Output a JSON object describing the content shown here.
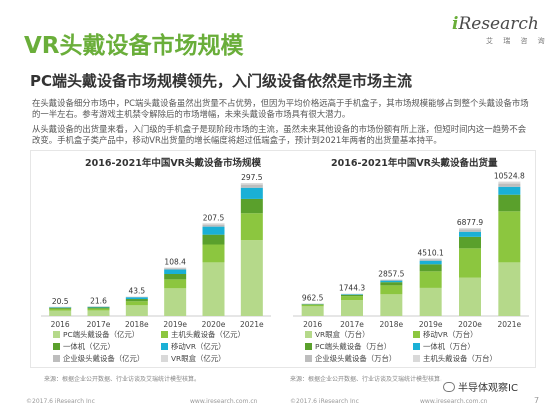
{
  "slide": {
    "title": "VR头戴设备市场规模",
    "subtitle": "PC端头戴设备市场规模领先，入门级设备依然是市场主流",
    "paragraph1": "在头戴设备细分市场中，PC端头戴设备虽然出货量不占优势，但因为平均价格远高于手机盒子，其市场规模能够占到整个头戴设备市场的一半左右。参考游戏主机禁令解除后的市场增幅，未来头戴设备市场具有很大潜力。",
    "paragraph2": "从头戴设备的出货量来看，入门级的手机盒子是现阶段市场的主流，虽然未来其他设备的市场份额有所上涨，但短时间内这一趋势不会改变。手机盒子类产品中，移动VR出货量的增长幅度将超过低端盒子，预计到2021年两者的出货量基本持平。"
  },
  "logo": {
    "brand_i": "i",
    "brand_rest": "Research",
    "sub": "艾 瑞 咨 询"
  },
  "colors": {
    "green_dark": "#5aa02c",
    "green_mid": "#8cc63f",
    "green_light": "#b5d98a",
    "cyan": "#1ab0d6",
    "gray": "#bdbdbd",
    "title_green": "#6aae3a"
  },
  "chart_data": [
    {
      "type": "bar",
      "stacked": true,
      "title": "2016-2021年中国VR头戴设备市场规模",
      "categories": [
        "2016",
        "2017e",
        "2018e",
        "2019e",
        "2020e",
        "2021e"
      ],
      "totals": [
        20.5,
        21.6,
        43.5,
        108.4,
        207.5,
        297.5
      ],
      "total_labels": [
        "20.5",
        "21.6",
        "43.5",
        "108.4",
        "207.5",
        "297.5"
      ],
      "series": [
        {
          "name": "PC端头戴设备（亿元）",
          "color": "#b5d98a",
          "values": [
            12,
            12.5,
            24,
            62,
            120,
            170
          ]
        },
        {
          "name": "主机头戴设备（亿元）",
          "color": "#8cc63f",
          "values": [
            4,
            4,
            9,
            20,
            40,
            60
          ]
        },
        {
          "name": "一体机（亿元）",
          "color": "#5aa02c",
          "values": [
            2.5,
            2.6,
            5,
            12,
            22,
            32
          ]
        },
        {
          "name": "移动VR（亿元）",
          "color": "#1ab0d6",
          "values": [
            1.5,
            1.7,
            4,
            10,
            18,
            25
          ]
        },
        {
          "name": "企业级头戴设备（亿元）",
          "color": "#bdbdbd",
          "values": [
            0.3,
            0.4,
            0.8,
            2.4,
            4.5,
            7
          ]
        },
        {
          "name": "VR眼盒（亿元）",
          "color": "#d9d9d9",
          "values": [
            0.2,
            0.4,
            0.7,
            2,
            3,
            3.5
          ]
        }
      ],
      "ylim": [
        0,
        320
      ],
      "legend_position": "bottom"
    },
    {
      "type": "bar",
      "stacked": true,
      "title": "2016-2021年中国VR头戴设备出货量",
      "categories": [
        "2016",
        "2017e",
        "2018e",
        "2019e",
        "2020e",
        "2021e"
      ],
      "totals": [
        962.5,
        1744.3,
        2857.5,
        4510.1,
        6877.9,
        10524.8
      ],
      "total_labels": [
        "962.5",
        "1744.3",
        "2857.5",
        "4510.1",
        "6877.9",
        "10524.8"
      ],
      "series": [
        {
          "name": "VR眼盒（万台）",
          "color": "#b5d98a",
          "values": [
            760,
            1250,
            1700,
            2200,
            3000,
            4200
          ]
        },
        {
          "name": "移动VR（万台）",
          "color": "#8cc63f",
          "values": [
            120,
            300,
            700,
            1300,
            2300,
            4000
          ]
        },
        {
          "name": "PC端头戴设备（万台）",
          "color": "#5aa02c",
          "values": [
            50,
            110,
            250,
            550,
            900,
            1300
          ]
        },
        {
          "name": "一体机（万台）",
          "color": "#1ab0d6",
          "values": [
            20,
            50,
            120,
            280,
            400,
            620
          ]
        },
        {
          "name": "企业级头戴设备（万台）",
          "color": "#bdbdbd",
          "values": [
            8,
            20,
            50,
            120,
            180,
            250
          ]
        },
        {
          "name": "主机头戴设备（万台）",
          "color": "#d9d9d9",
          "values": [
            4.5,
            14.3,
            37.5,
            60.1,
            97.9,
            154.8
          ]
        }
      ],
      "ylim": [
        0,
        11200
      ],
      "legend_position": "bottom"
    }
  ],
  "sources": {
    "left": "来源：根据企业公开数据、行业访谈及艾瑞统计模型核算。",
    "right": "来源：根据企业公开数据、行业访谈及艾瑞统计模型核算。"
  },
  "footer": {
    "copyright_left": "©2017.6 iResearch Inc",
    "url_left": "www.iresearch.com.cn",
    "copyright_right": "©2017.6 iResearch Inc",
    "url_right": "www.iresearch.com.cn",
    "page": "7"
  },
  "watermark": {
    "text": "半导体观察IC"
  }
}
